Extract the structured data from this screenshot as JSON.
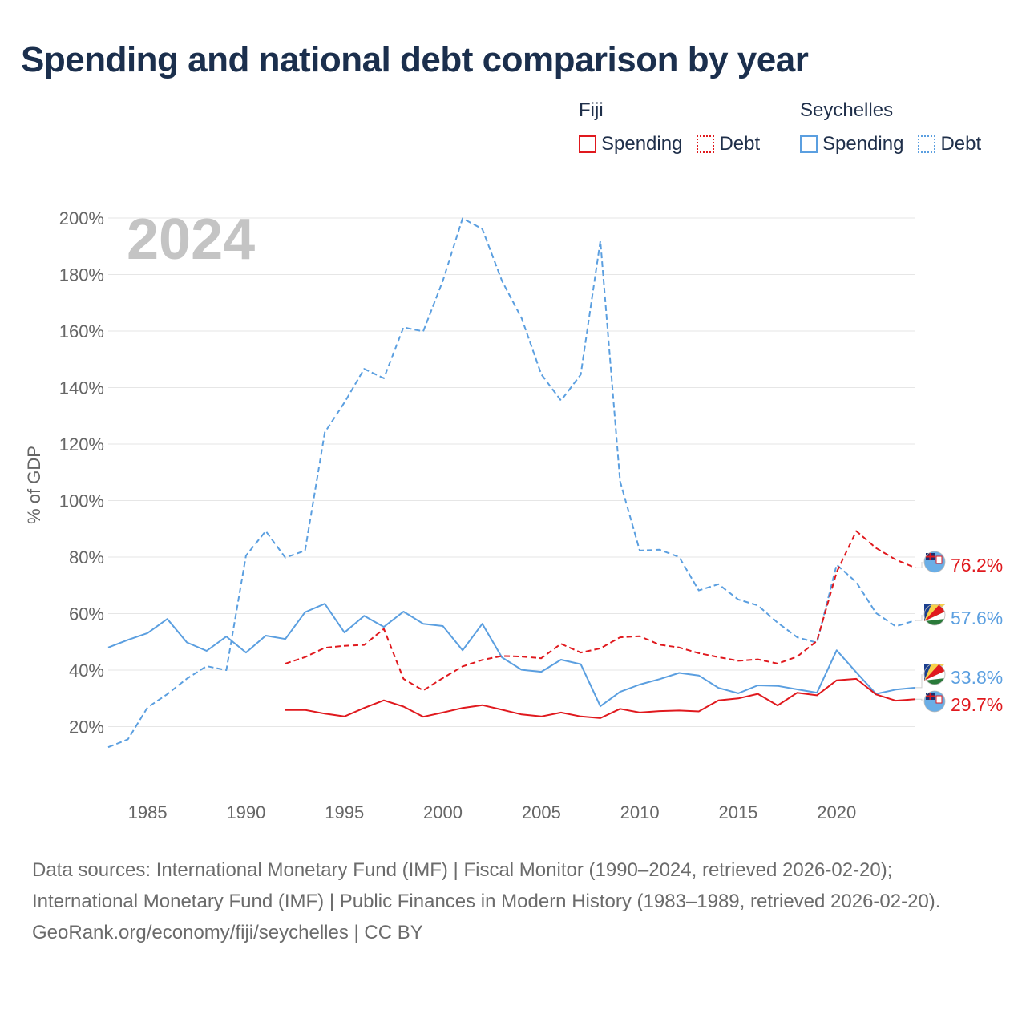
{
  "title": "Spending and national debt comparison by year",
  "legend": {
    "groups": [
      {
        "country": "Fiji",
        "items": [
          {
            "label": "Spending",
            "style": "solid",
            "color": "#e0191e"
          },
          {
            "label": "Debt",
            "style": "dotted",
            "color": "#e0191e"
          }
        ]
      },
      {
        "country": "Seychelles",
        "items": [
          {
            "label": "Spending",
            "style": "solid",
            "color": "#5b9fe0"
          },
          {
            "label": "Debt",
            "style": "dotted",
            "color": "#5b9fe0"
          }
        ]
      }
    ]
  },
  "chart_data": {
    "type": "line",
    "year_label": "2024",
    "ylabel": "% of GDP",
    "xlabel": "",
    "xlim": [
      1983,
      2024
    ],
    "ylim": [
      0,
      200
    ],
    "x_ticks": [
      1985,
      1990,
      1995,
      2000,
      2005,
      2010,
      2015,
      2020
    ],
    "y_ticks": [
      20,
      40,
      60,
      80,
      100,
      120,
      140,
      160,
      180,
      200
    ],
    "y_tick_labels": [
      "20%",
      "40%",
      "60%",
      "80%",
      "100%",
      "120%",
      "140%",
      "160%",
      "180%",
      "200%"
    ],
    "grid": true,
    "series": [
      {
        "name": "Seychelles Debt",
        "country": "Seychelles",
        "measure": "Debt",
        "color": "#5b9fe0",
        "dashed": true,
        "x": [
          1983,
          1984,
          1985,
          1986,
          1987,
          1988,
          1989,
          1990,
          1991,
          1992,
          1993,
          1994,
          1995,
          1996,
          1997,
          1998,
          1999,
          2000,
          2001,
          2002,
          2003,
          2004,
          2005,
          2006,
          2007,
          2008,
          2009,
          2010,
          2011,
          2012,
          2013,
          2014,
          2015,
          2016,
          2017,
          2018,
          2019,
          2020,
          2021,
          2022,
          2023,
          2024
        ],
        "values": [
          12.7,
          15.5,
          26.8,
          31.5,
          37,
          41.4,
          40,
          80.5,
          89.2,
          79.8,
          82.3,
          124.1,
          134.7,
          146.6,
          143.3,
          161.3,
          159.9,
          177.8,
          199.9,
          196.1,
          177.8,
          164.5,
          144.7,
          135.4,
          144.6,
          191.9,
          106.8,
          82.3,
          82.6,
          80,
          68.2,
          70.4,
          65,
          62.9,
          56.8,
          51.6,
          49.7,
          77.3,
          71.1,
          60.2,
          55.5,
          57.6
        ]
      },
      {
        "name": "Seychelles Spending",
        "country": "Seychelles",
        "measure": "Spending",
        "color": "#5b9fe0",
        "dashed": false,
        "x": [
          1983,
          1984,
          1985,
          1986,
          1987,
          1988,
          1989,
          1990,
          1991,
          1992,
          1993,
          1994,
          1995,
          1996,
          1997,
          1998,
          1999,
          2000,
          2001,
          2002,
          2003,
          2004,
          2005,
          2006,
          2007,
          2008,
          2009,
          2010,
          2011,
          2012,
          2013,
          2014,
          2015,
          2016,
          2017,
          2018,
          2019,
          2020,
          2021,
          2022,
          2023,
          2024
        ],
        "values": [
          48,
          50.7,
          53.1,
          58.1,
          49.8,
          46.8,
          51.9,
          46.2,
          52.2,
          51,
          60.5,
          63.5,
          53.3,
          59.2,
          55.3,
          60.7,
          56.4,
          55.6,
          47,
          56.4,
          44.5,
          40.1,
          39.4,
          43.7,
          42.1,
          27.2,
          32.3,
          34.9,
          36.8,
          39,
          38.1,
          33.7,
          31.8,
          34.6,
          34.4,
          33.2,
          32,
          47,
          39.2,
          31.6,
          33.1,
          33.8
        ]
      },
      {
        "name": "Fiji Debt",
        "country": "Fiji",
        "measure": "Debt",
        "color": "#e0191e",
        "dashed": true,
        "x": [
          1992,
          1993,
          1994,
          1995,
          1996,
          1997,
          1998,
          1999,
          2000,
          2001,
          2002,
          2003,
          2004,
          2005,
          2006,
          2007,
          2008,
          2009,
          2010,
          2011,
          2012,
          2013,
          2014,
          2015,
          2016,
          2017,
          2018,
          2019,
          2020,
          2021,
          2022,
          2023,
          2024
        ],
        "values": [
          42.3,
          44.6,
          47.9,
          48.6,
          48.9,
          54.6,
          36.9,
          32.8,
          37.2,
          41.3,
          43.6,
          45,
          44.8,
          44.2,
          49.3,
          46.2,
          47.7,
          51.6,
          52,
          49,
          48,
          46,
          44.6,
          43.3,
          43.8,
          42.3,
          44.8,
          50.3,
          74.7,
          89.2,
          83.2,
          79.1,
          76.2
        ]
      },
      {
        "name": "Fiji Spending",
        "country": "Fiji",
        "measure": "Spending",
        "color": "#e0191e",
        "dashed": false,
        "x": [
          1992,
          1993,
          1994,
          1995,
          1996,
          1997,
          1998,
          1999,
          2000,
          2001,
          2002,
          2003,
          2004,
          2005,
          2006,
          2007,
          2008,
          2009,
          2010,
          2011,
          2012,
          2013,
          2014,
          2015,
          2016,
          2017,
          2018,
          2019,
          2020,
          2021,
          2022,
          2023,
          2024
        ],
        "values": [
          25.9,
          25.9,
          24.6,
          23.6,
          26.6,
          29.3,
          27.1,
          23.5,
          25,
          26.6,
          27.6,
          26,
          24.3,
          23.6,
          25,
          23.6,
          23,
          26.3,
          25,
          25.5,
          25.7,
          25.4,
          29.3,
          30,
          31.6,
          27.5,
          32,
          31.1,
          36.4,
          36.9,
          31.4,
          29.2,
          29.7
        ]
      }
    ],
    "end_labels": [
      {
        "text": "76.2%",
        "color": "#e0191e",
        "value": 76.2
      },
      {
        "text": "57.6%",
        "color": "#5b9fe0",
        "value": 57.6
      },
      {
        "text": "33.8%",
        "color": "#5b9fe0",
        "value": 33.8
      },
      {
        "text": "29.7%",
        "color": "#e0191e",
        "value": 29.7
      }
    ]
  },
  "footer": {
    "sources": "Data sources: International Monetary Fund (IMF) | Fiscal Monitor (1990–2024, retrieved 2026-02-20); International Monetary Fund (IMF) | Public Finances in Modern History (1983–1989, retrieved 2026-02-20).",
    "credit": "GeoRank.org/economy/fiji/seychelles | CC BY"
  }
}
